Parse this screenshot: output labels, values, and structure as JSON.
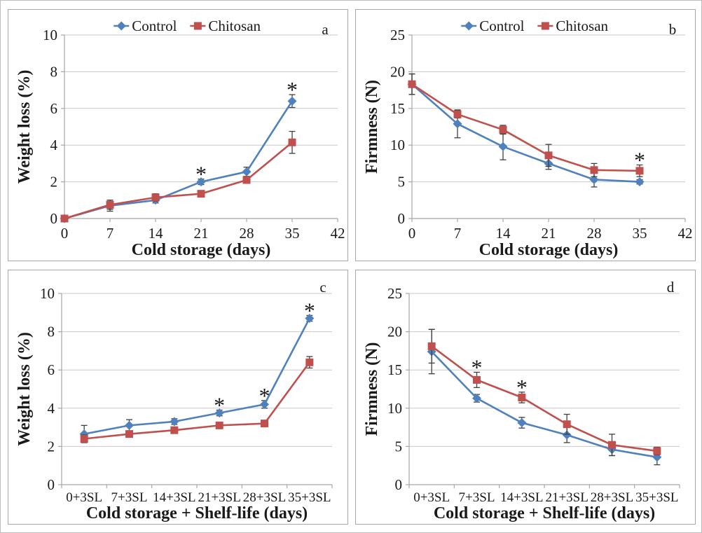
{
  "palette": {
    "control": "#4F81BD",
    "chitosan": "#C0504D",
    "gridline": "#C9C9C9",
    "axis": "#A6A6A6",
    "error_bar": "#404040",
    "text": "#1A1A1A"
  },
  "legend": {
    "items": [
      {
        "label": "Control",
        "marker": "diamond",
        "color": "#4F81BD"
      },
      {
        "label": "Chitosan",
        "marker": "square",
        "color": "#C0504D"
      }
    ],
    "position": "top-center"
  },
  "chart_data": [
    {
      "id": "a",
      "type": "line",
      "panel_label": "a",
      "xlabel": "Cold storage (days)",
      "ylabel": "Weight loss (%)",
      "x_type": "numeric",
      "x": [
        0,
        7,
        14,
        21,
        28,
        35
      ],
      "xticks": [
        0,
        7,
        14,
        21,
        28,
        35,
        42
      ],
      "xlim": [
        0,
        42
      ],
      "ylim": [
        0,
        10
      ],
      "yticks": [
        0,
        2,
        4,
        6,
        8,
        10
      ],
      "grid": "horizontal",
      "legend_visible": true,
      "series": [
        {
          "name": "Control",
          "color": "#4F81BD",
          "marker": "diamond",
          "values": [
            0,
            0.7,
            1.0,
            2.0,
            2.55,
            6.4
          ],
          "errors": [
            0,
            0.3,
            0.15,
            0.15,
            0.25,
            0.35
          ]
        },
        {
          "name": "Chitosan",
          "color": "#C0504D",
          "marker": "square",
          "values": [
            0,
            0.75,
            1.15,
            1.35,
            2.1,
            4.15
          ],
          "errors": [
            0,
            0.25,
            0.2,
            0.12,
            0.12,
            0.6
          ]
        }
      ],
      "annotations": [
        {
          "text": "*",
          "series": "Control",
          "index": 3
        },
        {
          "text": "*",
          "series": "Control",
          "index": 5
        }
      ]
    },
    {
      "id": "b",
      "type": "line",
      "panel_label": "b",
      "xlabel": "Cold storage (days)",
      "ylabel": "Firmness (N)",
      "x_type": "numeric",
      "x": [
        0,
        7,
        14,
        21,
        28,
        35
      ],
      "xticks": [
        0,
        7,
        14,
        21,
        28,
        35,
        42
      ],
      "xlim": [
        0,
        42
      ],
      "ylim": [
        0,
        25
      ],
      "yticks": [
        0,
        5,
        10,
        15,
        20,
        25
      ],
      "grid": "horizontal",
      "legend_visible": true,
      "series": [
        {
          "name": "Control",
          "color": "#4F81BD",
          "marker": "diamond",
          "values": [
            18.3,
            12.9,
            9.8,
            7.5,
            5.3,
            5.0
          ],
          "errors": [
            1.4,
            1.9,
            1.8,
            0.8,
            1.0,
            0.3
          ]
        },
        {
          "name": "Chitosan",
          "color": "#C0504D",
          "marker": "square",
          "values": [
            18.3,
            14.2,
            12.1,
            8.6,
            6.6,
            6.5
          ],
          "errors": [
            1.4,
            0.5,
            0.6,
            1.5,
            0.9,
            0.8
          ]
        }
      ],
      "annotations": [
        {
          "text": "*",
          "series": "Chitosan",
          "index": 5
        }
      ]
    },
    {
      "id": "c",
      "type": "line",
      "panel_label": "c",
      "xlabel": "Cold storage + Shelf-life (days)",
      "ylabel": "Weight loss (%)",
      "x_type": "category",
      "categories": [
        "0+3SL",
        "7+3SL",
        "14+3SL",
        "21+3SL",
        "28+3SL",
        "35+3SL"
      ],
      "ylim": [
        0,
        10
      ],
      "yticks": [
        0,
        2,
        4,
        6,
        8,
        10
      ],
      "grid": "horizontal",
      "legend_visible": false,
      "series": [
        {
          "name": "Control",
          "color": "#4F81BD",
          "marker": "diamond",
          "values": [
            2.65,
            3.1,
            3.3,
            3.75,
            4.2,
            8.7
          ],
          "errors": [
            0.45,
            0.3,
            0.15,
            0.15,
            0.2,
            0.15
          ]
        },
        {
          "name": "Chitosan",
          "color": "#C0504D",
          "marker": "square",
          "values": [
            2.4,
            2.65,
            2.85,
            3.1,
            3.2,
            6.4
          ],
          "errors": [
            0.2,
            0.1,
            0.1,
            0.1,
            0.1,
            0.3
          ]
        }
      ],
      "annotations": [
        {
          "text": "*",
          "series": "Control",
          "index": 3
        },
        {
          "text": "*",
          "series": "Control",
          "index": 4
        },
        {
          "text": "*",
          "series": "Control",
          "index": 5
        }
      ]
    },
    {
      "id": "d",
      "type": "line",
      "panel_label": "d",
      "xlabel": "Cold storage + Shelf-life (days)",
      "ylabel": "Firmness (N)",
      "x_type": "category",
      "categories": [
        "0+3SL",
        "7+3SL",
        "14+3SL",
        "21+3SL",
        "28+3SL",
        "35+3SL"
      ],
      "ylim": [
        0,
        25
      ],
      "yticks": [
        0,
        5,
        10,
        15,
        20,
        25
      ],
      "grid": "horizontal",
      "legend_visible": false,
      "series": [
        {
          "name": "Control",
          "color": "#4F81BD",
          "marker": "diamond",
          "values": [
            17.4,
            11.3,
            8.1,
            6.5,
            4.6,
            3.6
          ],
          "errors": [
            2.9,
            0.5,
            0.7,
            1.0,
            0.8,
            1.0
          ]
        },
        {
          "name": "Chitosan",
          "color": "#C0504D",
          "marker": "square",
          "values": [
            18.1,
            13.7,
            11.4,
            7.9,
            5.2,
            4.4
          ],
          "errors": [
            2.2,
            1.0,
            0.7,
            1.3,
            1.4,
            0.5
          ]
        }
      ],
      "annotations": [
        {
          "text": "*",
          "series": "Chitosan",
          "index": 1
        },
        {
          "text": "*",
          "series": "Chitosan",
          "index": 2
        }
      ]
    }
  ]
}
